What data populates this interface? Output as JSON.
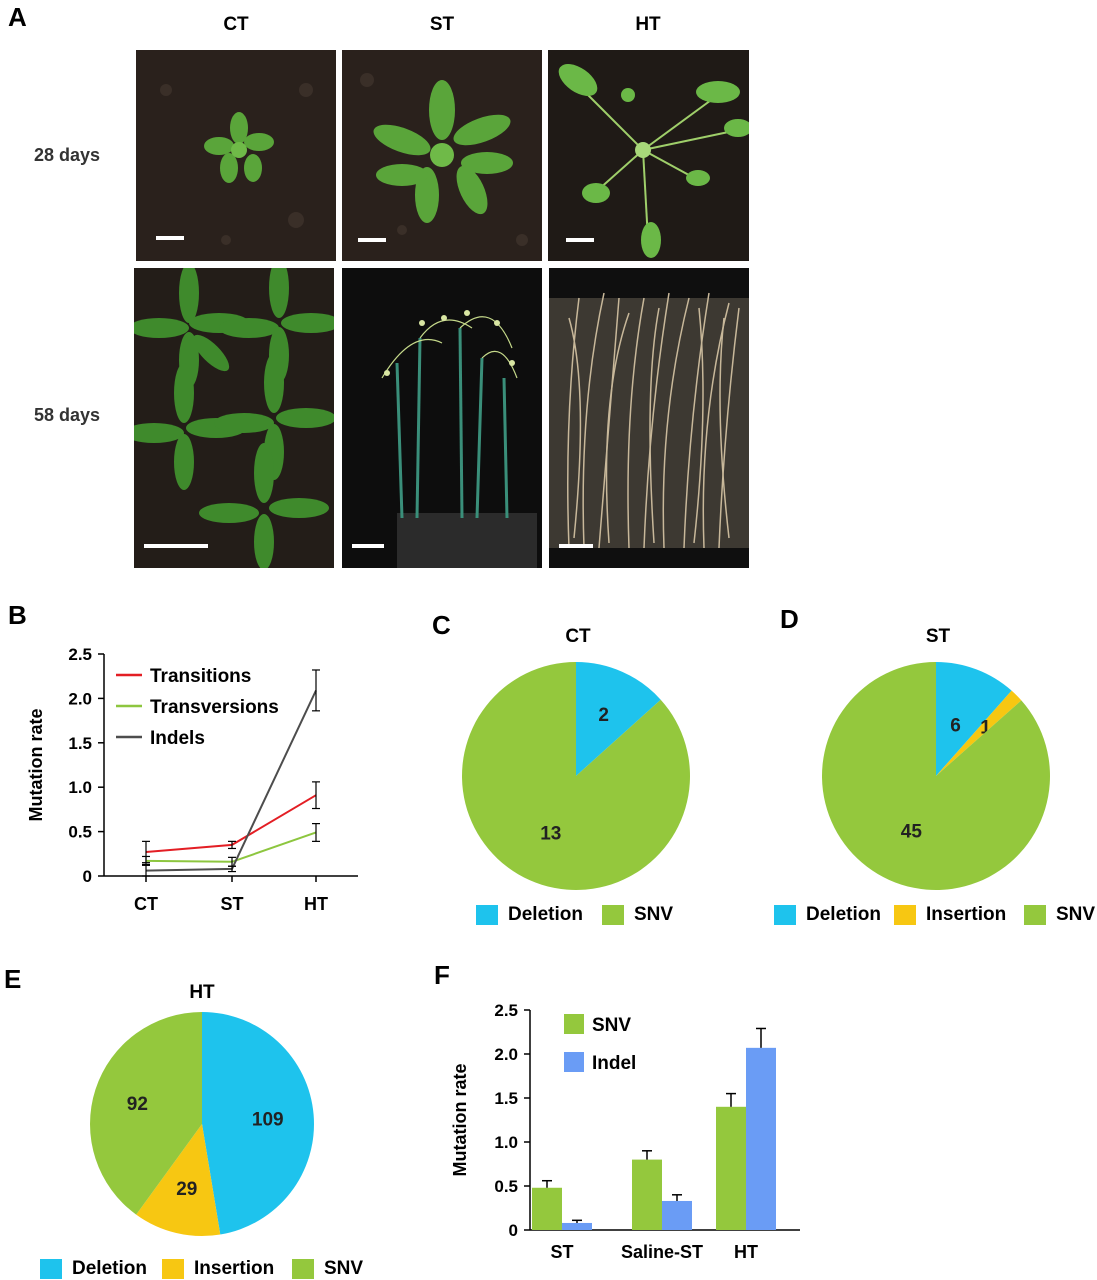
{
  "panels": {
    "A": "A",
    "B": "B",
    "C": "C",
    "D": "D",
    "E": "E",
    "F": "F"
  },
  "panel_a": {
    "columns": [
      "CT",
      "ST",
      "HT"
    ],
    "rows": [
      "28 days",
      "58 days"
    ]
  },
  "colors": {
    "deletion": "#1ec3ed",
    "insertion": "#f7c712",
    "snv": "#94c83d",
    "transitions": "#e31e24",
    "transversions": "#8dc63f",
    "indels": "#4d4d4d",
    "indel_bar": "#6a9cf5"
  },
  "chart_data": [
    {
      "panel": "B",
      "type": "line",
      "categories": [
        "CT",
        "ST",
        "HT"
      ],
      "ylabel": "Mutation rate",
      "ylim": [
        0,
        2.5
      ],
      "yticks": [
        "0",
        "0.5",
        "1.0",
        "1.5",
        "2.0",
        "2.5"
      ],
      "series": [
        {
          "name": "Transitions",
          "values": [
            0.27,
            0.35,
            0.91
          ],
          "errors": [
            0.12,
            0.04,
            0.15
          ]
        },
        {
          "name": "Transversions",
          "values": [
            0.17,
            0.16,
            0.49
          ],
          "errors": [
            0.05,
            0.05,
            0.1
          ]
        },
        {
          "name": "Indels",
          "values": [
            0.06,
            0.08,
            2.09
          ],
          "errors": [
            0.07,
            0.03,
            0.23
          ]
        }
      ]
    },
    {
      "panel": "C",
      "type": "pie",
      "title": "CT",
      "labels": [
        "Deletion",
        "SNV"
      ],
      "values": [
        2,
        13
      ],
      "value_labels": [
        "2",
        "13"
      ]
    },
    {
      "panel": "D",
      "type": "pie",
      "title": "ST",
      "labels": [
        "Deletion",
        "Insertion",
        "SNV"
      ],
      "values": [
        6,
        1,
        45
      ],
      "value_labels": [
        "6",
        "1",
        "45"
      ]
    },
    {
      "panel": "E",
      "type": "pie",
      "title": "HT",
      "labels": [
        "Deletion",
        "Insertion",
        "SNV"
      ],
      "values": [
        109,
        29,
        92
      ],
      "value_labels": [
        "109",
        "29",
        "92"
      ]
    },
    {
      "panel": "F",
      "type": "bar",
      "categories": [
        "ST",
        "Saline-ST",
        "HT"
      ],
      "ylabel": "Mutation rate",
      "ylim": [
        0,
        2.5
      ],
      "yticks": [
        "0",
        "0.5",
        "1.0",
        "1.5",
        "2.0",
        "2.5"
      ],
      "series": [
        {
          "name": "SNV",
          "values": [
            0.48,
            0.8,
            1.4
          ],
          "errors": [
            0.08,
            0.1,
            0.15
          ]
        },
        {
          "name": "Indel",
          "values": [
            0.08,
            0.33,
            2.07
          ],
          "errors": [
            0.03,
            0.07,
            0.22
          ]
        }
      ]
    }
  ]
}
